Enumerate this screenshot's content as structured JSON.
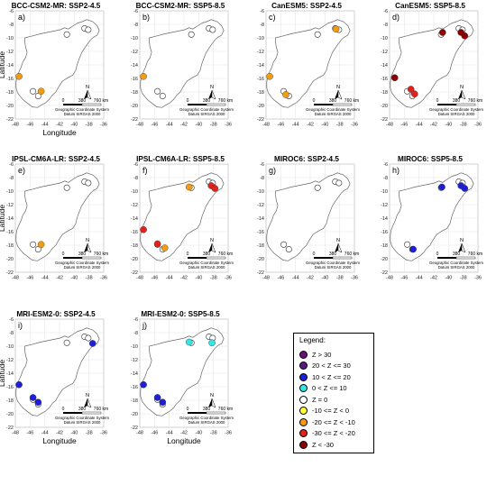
{
  "panels": [
    {
      "title": "BCC-CSM2-MR: SSP2-4.5",
      "letter": "a)",
      "y_axis_label": "Latitude",
      "x_axis_label": "Longitude",
      "points": [
        {
          "lon": -47.5,
          "lat": -15.7,
          "color": "#f39c12"
        },
        {
          "lon": -44.5,
          "lat": -17.9,
          "color": "#f39c12"
        }
      ]
    },
    {
      "title": "BCC-CSM2-MR: SSP5-8.5",
      "letter": "b)",
      "y_axis_label": "",
      "x_axis_label": "",
      "points": [
        {
          "lon": -47.5,
          "lat": -15.7,
          "color": "#f39c12"
        }
      ]
    },
    {
      "title": "CanESM5: SSP2-4.5",
      "letter": "c)",
      "y_axis_label": "",
      "x_axis_label": "",
      "points": [
        {
          "lon": -47.5,
          "lat": -15.7,
          "color": "#f39c12"
        },
        {
          "lon": -45.3,
          "lat": -18.4,
          "color": "#f39c12"
        },
        {
          "lon": -38.5,
          "lat": -8.7,
          "color": "#f39c12"
        }
      ]
    },
    {
      "title": "CanESM5: SSP5-8.5",
      "letter": "d)",
      "y_axis_label": "",
      "x_axis_label": "",
      "points": [
        {
          "lon": -47.3,
          "lat": -15.9,
          "color": "#8b0000"
        },
        {
          "lon": -45.1,
          "lat": -17.6,
          "color": "#e3211c"
        },
        {
          "lon": -44.6,
          "lat": -18.3,
          "color": "#e3211c"
        },
        {
          "lon": -40.8,
          "lat": -9.2,
          "color": "#8b0000"
        },
        {
          "lon": -38.3,
          "lat": -9.2,
          "color": "#8b0000"
        },
        {
          "lon": -37.8,
          "lat": -9.7,
          "color": "#8b0000"
        }
      ]
    },
    {
      "title": "IPSL-CM6A-LR: SSP2-4.5",
      "letter": "e)",
      "y_axis_label": "Latitude",
      "x_axis_label": "",
      "points": [
        {
          "lon": -44.5,
          "lat": -17.9,
          "color": "#f39c12"
        }
      ]
    },
    {
      "title": "IPSL-CM6A-LR: SSP5-8.5",
      "letter": "f)",
      "y_axis_label": "",
      "x_axis_label": "",
      "points": [
        {
          "lon": -47.5,
          "lat": -15.7,
          "color": "#e3211c"
        },
        {
          "lon": -45.6,
          "lat": -17.8,
          "color": "#e3211c"
        },
        {
          "lon": -44.6,
          "lat": -18.4,
          "color": "#f39c12"
        },
        {
          "lon": -41.3,
          "lat": -9.4,
          "color": "#f39c12"
        },
        {
          "lon": -38.3,
          "lat": -9.2,
          "color": "#e3211c"
        },
        {
          "lon": -37.8,
          "lat": -9.6,
          "color": "#e3211c"
        }
      ]
    },
    {
      "title": "MIROC6: SSP2-4.5",
      "letter": "g)",
      "y_axis_label": "",
      "x_axis_label": "",
      "points": []
    },
    {
      "title": "MIROC6: SSP5-8.5",
      "letter": "h)",
      "y_axis_label": "",
      "x_axis_label": "",
      "points": [
        {
          "lon": -44.8,
          "lat": -18.6,
          "color": "#1f1fd6"
        },
        {
          "lon": -40.9,
          "lat": -9.4,
          "color": "#1f1fd6"
        },
        {
          "lon": -38.3,
          "lat": -9.2,
          "color": "#1f1fd6"
        },
        {
          "lon": -37.8,
          "lat": -9.6,
          "color": "#1f1fd6"
        }
      ]
    },
    {
      "title": "MRI-ESM2-0: SSP2-4.5",
      "letter": "i)",
      "y_axis_label": "Latitude",
      "x_axis_label": "Longitude",
      "points": [
        {
          "lon": -47.5,
          "lat": -15.7,
          "color": "#1f1fd6"
        },
        {
          "lon": -45.6,
          "lat": -17.6,
          "color": "#1f1fd6"
        },
        {
          "lon": -44.9,
          "lat": -18.3,
          "color": "#1f1fd6"
        },
        {
          "lon": -37.5,
          "lat": -9.6,
          "color": "#1f1fd6"
        }
      ]
    },
    {
      "title": "MRI-ESM2-0: SSP5-8.5",
      "letter": "j)",
      "y_axis_label": "",
      "x_axis_label": "Longitude",
      "points": [
        {
          "lon": -47.5,
          "lat": -15.7,
          "color": "#1f1fd6"
        },
        {
          "lon": -45.6,
          "lat": -17.6,
          "color": "#1f1fd6"
        },
        {
          "lon": -44.9,
          "lat": -18.3,
          "color": "#1f1fd6"
        },
        {
          "lon": -41.3,
          "lat": -9.4,
          "color": "#33e6e6"
        },
        {
          "lon": -38.2,
          "lat": -9.5,
          "color": "#33e6e6"
        }
      ]
    }
  ],
  "x_ticks": [
    "-48",
    "-46",
    "-44",
    "-42",
    "-40",
    "-38",
    "-36"
  ],
  "y_ticks": [
    "-6",
    "-8",
    "-10",
    "-12",
    "-14",
    "-16",
    "-18",
    "-20",
    "-22"
  ],
  "x_tick_values": [
    -48,
    -46,
    -44,
    -42,
    -40,
    -38,
    -36
  ],
  "y_tick_values": [
    -6,
    -8,
    -10,
    -12,
    -14,
    -16,
    -18,
    -20,
    -22
  ],
  "lon_range": [
    -48,
    -36
  ],
  "lat_range": [
    -22,
    -6
  ],
  "north_label": "N",
  "scale_labels": [
    "0",
    "380",
    "760 km"
  ],
  "crs_lines": [
    "Geographic Coordinate System",
    "Datum SIRGAS 2000"
  ],
  "legend": {
    "title": "Legend:",
    "items": [
      {
        "label": "Z > 30",
        "color": "#6a0f7a"
      },
      {
        "label": "20 < Z <= 30",
        "color": "#5b1b87"
      },
      {
        "label": "10 < Z <= 20",
        "color": "#1f1fd6"
      },
      {
        "label": "0 < Z <= 10",
        "color": "#33e6e6"
      },
      {
        "label": "Z = 0",
        "color": "#ffffff"
      },
      {
        "label": "-10 <= Z < 0",
        "color": "#ffff33"
      },
      {
        "label": "-20 <= Z < -10",
        "color": "#f39c12"
      },
      {
        "label": "-30 <= Z < -20",
        "color": "#e3211c"
      },
      {
        "label": "Z < -30",
        "color": "#8b0000"
      }
    ]
  },
  "colors": {
    "outline": "#666666",
    "grid": "#e2e2e2",
    "empty_station": "#ffffff"
  }
}
